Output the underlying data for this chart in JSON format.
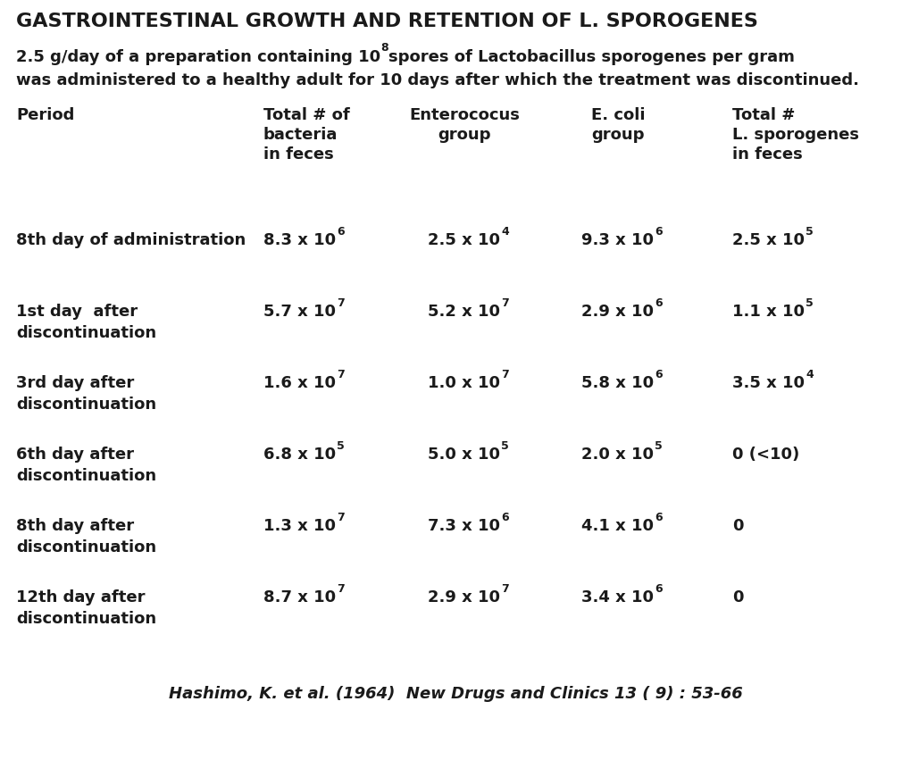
{
  "title": "GASTROINTESTINAL GROWTH AND RETENTION OF L. SPOROGENES",
  "bg_color": "#ffffff",
  "text_color": "#1a1a1a",
  "subtitle": {
    "pre": "2.5 g/day of a preparation containing 10",
    "sup": "8",
    "post": "spores of Lactobacillus sporogenes per gram",
    "line2": "was administered to a healthy adult for 10 days after which the treatment was discontinued."
  },
  "col_headers": [
    {
      "lines": [
        "Period"
      ],
      "align": "left"
    },
    {
      "lines": [
        "Total # of",
        "bacteria",
        "in feces"
      ],
      "align": "left"
    },
    {
      "lines": [
        "Enterococus",
        "group",
        ""
      ],
      "align": "center"
    },
    {
      "lines": [
        "E. coli",
        "group",
        ""
      ],
      "align": "center"
    },
    {
      "lines": [
        "Total #",
        "L. sporogenes",
        "in feces"
      ],
      "align": "right"
    }
  ],
  "rows": [
    {
      "period": [
        "8th day of administration",
        ""
      ],
      "cols": [
        {
          "base": "8.3 x 10",
          "exp": "6"
        },
        {
          "base": "2.5 x 10",
          "exp": "4"
        },
        {
          "base": "9.3 x 10",
          "exp": "6"
        },
        {
          "base": "2.5 x 10",
          "exp": "5"
        }
      ]
    },
    {
      "period": [
        "1st day  after",
        "discontinuation"
      ],
      "cols": [
        {
          "base": "5.7 x 10",
          "exp": "7"
        },
        {
          "base": "5.2 x 10",
          "exp": "7"
        },
        {
          "base": "2.9 x 10",
          "exp": "6"
        },
        {
          "base": "1.1 x 10",
          "exp": "5"
        }
      ]
    },
    {
      "period": [
        "3rd day after",
        "discontinuation"
      ],
      "cols": [
        {
          "base": "1.6 x 10",
          "exp": "7"
        },
        {
          "base": "1.0 x 10",
          "exp": "7"
        },
        {
          "base": "5.8 x 10",
          "exp": "6"
        },
        {
          "base": "3.5 x 10",
          "exp": "4"
        }
      ]
    },
    {
      "period": [
        "6th day after",
        "discontinuation"
      ],
      "cols": [
        {
          "base": "6.8 x 10",
          "exp": "5"
        },
        {
          "base": "5.0 x 10",
          "exp": "5"
        },
        {
          "base": "2.0 x 10",
          "exp": "5"
        },
        {
          "base": "0 (<10)",
          "exp": ""
        }
      ]
    },
    {
      "period": [
        "8th day after",
        "discontinuation"
      ],
      "cols": [
        {
          "base": "1.3 x 10",
          "exp": "7"
        },
        {
          "base": "7.3 x 10",
          "exp": "6"
        },
        {
          "base": "4.1 x 10",
          "exp": "6"
        },
        {
          "base": "0",
          "exp": ""
        }
      ]
    },
    {
      "period": [
        "12th day after",
        "discontinuation"
      ],
      "cols": [
        {
          "base": "8.7 x 10",
          "exp": "7"
        },
        {
          "base": "2.9 x 10",
          "exp": "7"
        },
        {
          "base": "3.4 x 10",
          "exp": "6"
        },
        {
          "base": "0",
          "exp": ""
        }
      ]
    }
  ],
  "citation": "Hashimo, K. et al. (1964)  New Drugs and Clinics 13 ( 9) : 53-66",
  "title_fontsize": 16,
  "subtitle_fontsize": 13,
  "header_fontsize": 13,
  "body_fontsize": 13,
  "citation_fontsize": 13
}
